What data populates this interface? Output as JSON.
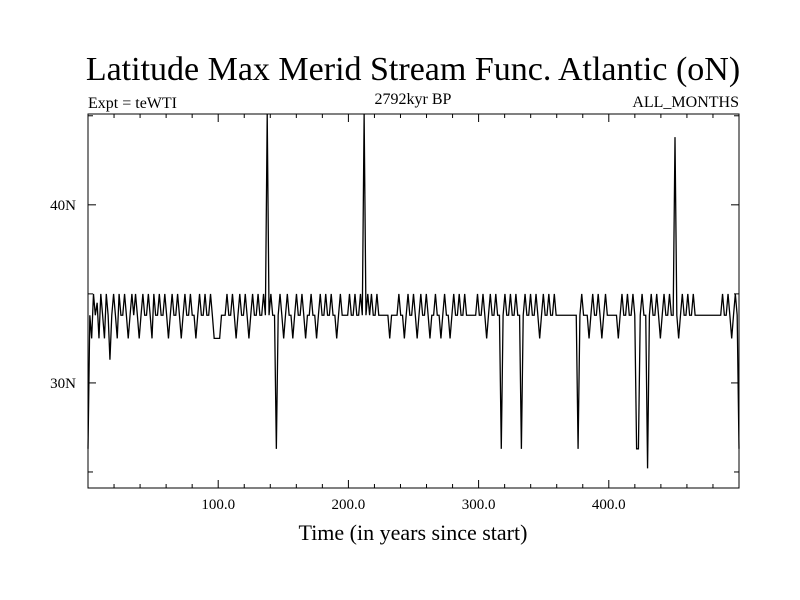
{
  "chart_data": {
    "type": "line",
    "title": "Latitude Max Merid Stream Func. Atlantic (oN)",
    "subtitle_left": "Expt = teWTI",
    "subtitle_center": "2792kyr BP",
    "subtitle_right": "ALL_MONTHS",
    "xlabel": "Time (in years since start)",
    "ylabel": "",
    "xlim": [
      0,
      500
    ],
    "ylim": [
      24.1,
      45.1
    ],
    "x_ticks": [
      100,
      200,
      300,
      400
    ],
    "x_tick_labels": [
      "100.0",
      "200.0",
      "300.0",
      "400.0"
    ],
    "y_ticks": [
      30,
      40
    ],
    "y_tick_labels": [
      "30N",
      "40N"
    ],
    "series": [
      {
        "values": [
          26.3,
          33.8,
          32.5,
          35.0,
          33.8,
          34.5,
          32.5,
          35.0,
          33.8,
          32.5,
          35.0,
          33.8,
          31.3,
          33.8,
          35.0,
          33.8,
          32.5,
          35.0,
          33.8,
          33.8,
          35.0,
          33.8,
          32.5,
          33.8,
          35.0,
          33.8,
          35.0,
          33.8,
          32.5,
          33.8,
          35.0,
          33.8,
          33.8,
          35.0,
          33.8,
          32.5,
          35.0,
          33.8,
          33.8,
          35.0,
          33.8,
          33.8,
          35.0,
          33.8,
          32.5,
          33.8,
          35.0,
          33.8,
          33.8,
          35.0,
          33.8,
          32.5,
          33.8,
          35.0,
          33.8,
          33.8,
          35.0,
          33.8,
          33.8,
          32.5,
          33.8,
          35.0,
          33.8,
          33.8,
          35.0,
          33.8,
          33.8,
          35.0,
          33.8,
          32.5,
          32.5,
          32.5,
          32.5,
          33.8,
          33.8,
          33.8,
          35.0,
          33.8,
          33.8,
          35.0,
          33.8,
          32.5,
          33.8,
          35.0,
          33.8,
          33.8,
          35.0,
          33.8,
          32.5,
          33.8,
          35.0,
          33.8,
          33.8,
          35.0,
          33.8,
          33.8,
          35.0,
          33.8,
          45.1,
          33.8,
          35.0,
          33.8,
          33.8,
          26.3,
          33.8,
          35.0,
          33.8,
          32.5,
          33.8,
          35.0,
          33.8,
          33.8,
          32.5,
          33.8,
          35.0,
          33.8,
          33.8,
          35.0,
          33.8,
          32.5,
          33.8,
          33.8,
          35.0,
          33.8,
          33.8,
          32.5,
          33.8,
          35.0,
          33.8,
          33.8,
          35.0,
          33.8,
          33.8,
          35.0,
          33.8,
          33.8,
          32.5,
          33.8,
          35.0,
          33.8,
          33.8,
          33.8,
          33.8,
          35.0,
          33.8,
          33.8,
          35.0,
          33.8,
          33.8,
          35.0,
          33.8,
          45.1,
          33.8,
          35.0,
          33.8,
          35.0,
          33.8,
          33.8,
          35.0,
          33.8,
          33.8,
          33.8,
          33.8,
          33.8,
          33.8,
          32.5,
          33.8,
          33.8,
          33.8,
          33.8,
          35.0,
          33.8,
          33.8,
          32.5,
          33.8,
          35.0,
          33.8,
          33.8,
          35.0,
          33.8,
          32.5,
          33.8,
          35.0,
          33.8,
          33.8,
          35.0,
          33.8,
          32.5,
          33.8,
          33.8,
          35.0,
          33.8,
          33.8,
          32.5,
          33.8,
          35.0,
          33.8,
          33.8,
          32.5,
          33.8,
          35.0,
          33.8,
          33.8,
          35.0,
          33.8,
          33.8,
          35.0,
          33.8,
          33.8,
          33.8,
          33.8,
          33.8,
          33.8,
          35.0,
          33.8,
          33.8,
          35.0,
          33.8,
          32.5,
          33.8,
          35.0,
          33.8,
          33.8,
          35.0,
          33.8,
          33.8,
          26.3,
          33.8,
          35.0,
          33.8,
          33.8,
          35.0,
          33.8,
          33.8,
          35.0,
          33.8,
          33.8,
          26.3,
          33.8,
          35.0,
          33.8,
          33.8,
          35.0,
          33.8,
          33.8,
          35.0,
          33.8,
          32.5,
          33.8,
          35.0,
          33.8,
          33.8,
          35.0,
          33.8,
          33.8,
          35.0,
          33.8,
          33.8,
          33.8,
          33.8,
          33.8,
          33.8,
          33.8,
          33.8,
          33.8,
          33.8,
          33.8,
          33.8,
          26.3,
          33.8,
          35.0,
          33.8,
          33.8,
          33.8,
          32.5,
          33.8,
          35.0,
          33.8,
          33.8,
          35.0,
          33.8,
          32.5,
          33.8,
          35.0,
          33.8,
          33.8,
          33.8,
          33.8,
          33.8,
          33.8,
          32.5,
          33.8,
          35.0,
          33.8,
          33.8,
          35.0,
          33.8,
          33.8,
          35.0,
          33.8,
          26.3,
          26.3,
          33.8,
          35.0,
          33.8,
          33.8,
          25.2,
          33.8,
          35.0,
          33.8,
          33.8,
          35.0,
          33.8,
          32.5,
          33.8,
          35.0,
          33.8,
          33.8,
          35.0,
          33.8,
          33.8,
          43.8,
          33.8,
          32.5,
          33.8,
          35.0,
          33.8,
          33.8,
          35.0,
          33.8,
          33.8,
          35.0,
          33.8,
          33.8,
          33.8,
          33.8,
          33.8,
          33.8,
          33.8,
          33.8,
          33.8,
          33.8,
          33.8,
          33.8,
          33.8,
          33.8,
          33.8,
          35.0,
          33.8,
          33.8,
          35.0,
          33.8,
          32.5,
          33.8,
          35.0,
          33.8,
          26.3
        ]
      }
    ]
  }
}
